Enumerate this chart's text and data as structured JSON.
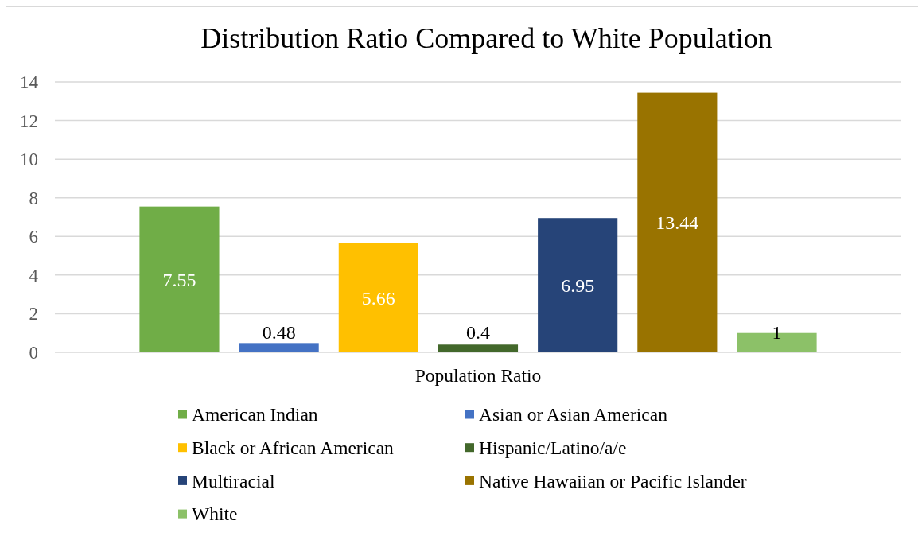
{
  "chart_data": {
    "type": "bar",
    "title": "Distribution Ratio Compared to White Population",
    "categories": [
      "Population Ratio"
    ],
    "series": [
      {
        "name": "American Indian",
        "color": "#70ad47",
        "values": [
          7.55
        ]
      },
      {
        "name": "Asian or Asian American",
        "color": "#4472c4",
        "values": [
          0.48
        ]
      },
      {
        "name": "Black or African American",
        "color": "#ffc000",
        "values": [
          5.66
        ]
      },
      {
        "name": "Hispanic/Latino/a/e",
        "color": "#43682b",
        "values": [
          0.4
        ]
      },
      {
        "name": "Multiracial",
        "color": "#264478",
        "values": [
          6.95
        ]
      },
      {
        "name": "Native Hawaiian or Pacific Islander",
        "color": "#997300",
        "values": [
          13.44
        ]
      },
      {
        "name": "White",
        "color": "#8cc168",
        "values": [
          1
        ]
      }
    ],
    "ylim": [
      0,
      14
    ],
    "yticks": [
      0,
      2,
      4,
      6,
      8,
      10,
      12,
      14
    ],
    "grid": "y",
    "legend": "bottom",
    "data_labels": true
  }
}
